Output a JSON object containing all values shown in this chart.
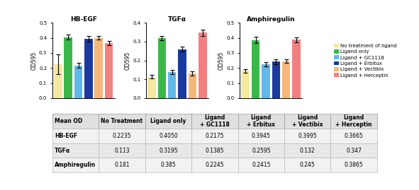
{
  "chart_title_hbegf": "HB-EGF",
  "chart_title_tgfa": "TGFα",
  "chart_title_amphiregulin": "Amphiregulin",
  "bar_colors": [
    "#f5e8a0",
    "#3cb84a",
    "#62b8e8",
    "#1a3a9f",
    "#f5b87a",
    "#f28080"
  ],
  "legend_labels": [
    "No treatment of ligand",
    "Ligand only",
    "Ligand + GC1118",
    "Ligand + Erbitux",
    "Ligand + Vectibix",
    "Ligand + Herceptin"
  ],
  "hbegf_values": [
    0.2235,
    0.405,
    0.2175,
    0.3945,
    0.3995,
    0.3665
  ],
  "tgfa_values": [
    0.113,
    0.3195,
    0.1385,
    0.2595,
    0.132,
    0.347
  ],
  "amphireg_values": [
    0.181,
    0.385,
    0.2245,
    0.2415,
    0.245,
    0.3865
  ],
  "hbegf_errors": [
    0.065,
    0.015,
    0.018,
    0.02,
    0.012,
    0.015
  ],
  "tgfa_errors": [
    0.01,
    0.012,
    0.013,
    0.013,
    0.012,
    0.018
  ],
  "amphireg_errors": [
    0.013,
    0.022,
    0.013,
    0.016,
    0.013,
    0.015
  ],
  "ylim_hbegf": [
    0.0,
    0.5
  ],
  "ylim_tgfa": [
    0.0,
    0.4
  ],
  "ylim_amphireg": [
    0.0,
    0.5
  ],
  "yticks_hbegf": [
    0.0,
    0.1,
    0.2,
    0.3,
    0.4,
    0.5
  ],
  "yticks_tgfa": [
    0.0,
    0.1,
    0.2,
    0.3,
    0.4
  ],
  "yticks_amphireg": [
    0.0,
    0.1,
    0.2,
    0.3,
    0.4,
    0.5
  ],
  "ylabel": "OD595",
  "table_col_header": [
    "Mean OD",
    "No Treatment",
    "Ligand only",
    "Ligand\n+ GC1118",
    "Ligand\n+ Erbitux",
    "Ligand\n+ Vectibix",
    "Ligand\n+ Herceptin"
  ],
  "table_data": [
    [
      "HB-EGF",
      "0.2235",
      "0.4050",
      "0.2175",
      "0.3945",
      "0.3995",
      "0.3665"
    ],
    [
      "TGFα",
      "0.113",
      "0.3195",
      "0.1385",
      "0.2595",
      "0.132",
      "0.347"
    ],
    [
      "Amphiregulin",
      "0.181",
      "0.385",
      "0.2245",
      "0.2415",
      "0.245",
      "0.3865"
    ]
  ],
  "background_color": "#ffffff",
  "bar_width": 0.8
}
